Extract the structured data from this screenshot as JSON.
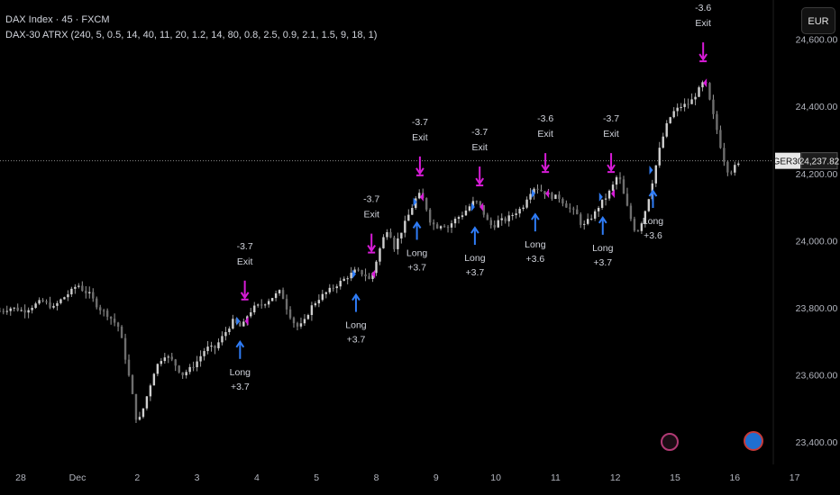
{
  "header": {
    "symbol_line": "DAX Index · 45 · FXCM",
    "indicator_line": "DAX-30 ATRX (240, 5, 0.5, 14, 40, 11, 20, 1.2, 14, 80, 0.8, 2.5, 0.9, 2.1, 1.5, 9, 18, 1)"
  },
  "currency_button": {
    "label": "EUR"
  },
  "price_label": {
    "symbol": "GER30",
    "value": "24,237.82"
  },
  "icons": {
    "lightning": "lightning-icon",
    "event": "event-icon"
  },
  "colors": {
    "background": "#000000",
    "candle": "#9a9a9a",
    "long": "#2f7cf6",
    "exit": "#d81bd8",
    "text": "#d1d4dc"
  },
  "chart_data": {
    "type": "candlestick",
    "y_ticks": [
      "23,400.00",
      "23,600.00",
      "23,800.00",
      "24,000.00",
      "24,200.00",
      "24,400.00",
      "24,600.00"
    ],
    "y_tick_values": [
      23400,
      23600,
      23800,
      24000,
      24200,
      24400,
      24600
    ],
    "ylim": [
      23333,
      24717
    ],
    "x_ticks": [
      "28",
      "Dec",
      "2",
      "3",
      "4",
      "5",
      "8",
      "9",
      "10",
      "11",
      "12",
      "15",
      "16",
      "17"
    ],
    "current_price": 24237.82,
    "trades": [
      {
        "entry_day": 2.72,
        "entry_price": 23760,
        "exit_day": 2.8,
        "exit_price": 23760,
        "long_label": "Long",
        "long_value": "+3.7",
        "exit_value": "-3.7",
        "exit_label": "Exit"
      },
      {
        "entry_day": 4.66,
        "entry_price": 23900,
        "exit_day": 4.92,
        "exit_price": 23900,
        "long_label": "Long",
        "long_value": "+3.7",
        "exit_value": "-3.7",
        "exit_label": "Exit"
      },
      {
        "entry_day": 5.68,
        "entry_price": 24115,
        "exit_day": 5.73,
        "exit_price": 24130,
        "long_label": "Long",
        "long_value": "+3.7",
        "exit_value": "-3.7",
        "exit_label": "Exit"
      },
      {
        "entry_day": 6.65,
        "entry_price": 24100,
        "exit_day": 6.73,
        "exit_price": 24100,
        "long_label": "Long",
        "long_value": "+3.7",
        "exit_value": "-3.7",
        "exit_label": "Exit"
      },
      {
        "entry_day": 7.66,
        "entry_price": 24140,
        "exit_day": 7.83,
        "exit_price": 24140,
        "long_label": "Long",
        "long_value": "+3.6",
        "exit_value": "-3.6",
        "exit_label": "Exit"
      },
      {
        "entry_day": 8.79,
        "entry_price": 24130,
        "exit_day": 8.93,
        "exit_price": 24140,
        "long_label": "Long",
        "long_value": "+3.7",
        "exit_value": "-3.7",
        "exit_label": "Exit"
      },
      {
        "entry_day": 9.63,
        "entry_price": 24210,
        "exit_day": 10.47,
        "exit_price": 24470,
        "long_label": "Long",
        "long_value": "+3.6",
        "exit_value": "-3.6",
        "exit_label": "Exit"
      }
    ],
    "close_path": [
      [
        -1.3,
        23790
      ],
      [
        -1.1,
        23800
      ],
      [
        -0.9,
        23790
      ],
      [
        -0.7,
        23810
      ],
      [
        -0.6,
        23820
      ],
      [
        -0.4,
        23800
      ],
      [
        -0.3,
        23820
      ],
      [
        -0.1,
        23850
      ],
      [
        0.0,
        23870
      ],
      [
        0.1,
        23850
      ],
      [
        0.2,
        23840
      ],
      [
        0.35,
        23800
      ],
      [
        0.5,
        23780
      ],
      [
        0.6,
        23760
      ],
      [
        0.7,
        23740
      ],
      [
        0.8,
        23650
      ],
      [
        0.9,
        23560
      ],
      [
        1.0,
        23450
      ],
      [
        1.1,
        23500
      ],
      [
        1.2,
        23560
      ],
      [
        1.3,
        23620
      ],
      [
        1.45,
        23660
      ],
      [
        1.6,
        23640
      ],
      [
        1.75,
        23600
      ],
      [
        1.9,
        23620
      ],
      [
        2.0,
        23640
      ],
      [
        2.15,
        23680
      ],
      [
        2.3,
        23680
      ],
      [
        2.45,
        23720
      ],
      [
        2.6,
        23760
      ],
      [
        2.75,
        23740
      ],
      [
        2.85,
        23780
      ],
      [
        2.95,
        23800
      ],
      [
        3.1,
        23810
      ],
      [
        3.25,
        23830
      ],
      [
        3.4,
        23850
      ],
      [
        3.5,
        23800
      ],
      [
        3.6,
        23760
      ],
      [
        3.7,
        23740
      ],
      [
        3.8,
        23760
      ],
      [
        3.9,
        23800
      ],
      [
        4.05,
        23830
      ],
      [
        4.2,
        23850
      ],
      [
        4.35,
        23870
      ],
      [
        4.5,
        23890
      ],
      [
        4.65,
        23910
      ],
      [
        4.8,
        23900
      ],
      [
        4.9,
        23880
      ],
      [
        5.0,
        23940
      ],
      [
        5.1,
        24000
      ],
      [
        5.2,
        24040
      ],
      [
        5.3,
        23980
      ],
      [
        5.4,
        24020
      ],
      [
        5.5,
        24060
      ],
      [
        5.6,
        24100
      ],
      [
        5.7,
        24140
      ],
      [
        5.8,
        24120
      ],
      [
        5.9,
        24060
      ],
      [
        6.0,
        24040
      ],
      [
        6.1,
        24050
      ],
      [
        6.2,
        24040
      ],
      [
        6.3,
        24060
      ],
      [
        6.45,
        24080
      ],
      [
        6.55,
        24100
      ],
      [
        6.65,
        24120
      ],
      [
        6.75,
        24100
      ],
      [
        6.85,
        24060
      ],
      [
        6.95,
        24040
      ],
      [
        7.05,
        24060
      ],
      [
        7.15,
        24060
      ],
      [
        7.3,
        24080
      ],
      [
        7.45,
        24100
      ],
      [
        7.55,
        24140
      ],
      [
        7.65,
        24160
      ],
      [
        7.75,
        24150
      ],
      [
        7.85,
        24140
      ],
      [
        7.95,
        24130
      ],
      [
        8.05,
        24130
      ],
      [
        8.2,
        24100
      ],
      [
        8.35,
        24080
      ],
      [
        8.45,
        24040
      ],
      [
        8.55,
        24060
      ],
      [
        8.65,
        24080
      ],
      [
        8.75,
        24110
      ],
      [
        8.85,
        24130
      ],
      [
        8.95,
        24160
      ],
      [
        9.05,
        24200
      ],
      [
        9.15,
        24130
      ],
      [
        9.25,
        24070
      ],
      [
        9.35,
        24020
      ],
      [
        9.45,
        24060
      ],
      [
        9.55,
        24120
      ],
      [
        9.65,
        24200
      ],
      [
        9.75,
        24280
      ],
      [
        9.85,
        24340
      ],
      [
        9.95,
        24380
      ],
      [
        10.1,
        24400
      ],
      [
        10.25,
        24410
      ],
      [
        10.4,
        24450
      ],
      [
        10.5,
        24480
      ],
      [
        10.6,
        24400
      ],
      [
        10.7,
        24330
      ],
      [
        10.8,
        24250
      ],
      [
        10.9,
        24200
      ],
      [
        11.0,
        24220
      ],
      [
        11.1,
        24230
      ]
    ]
  }
}
